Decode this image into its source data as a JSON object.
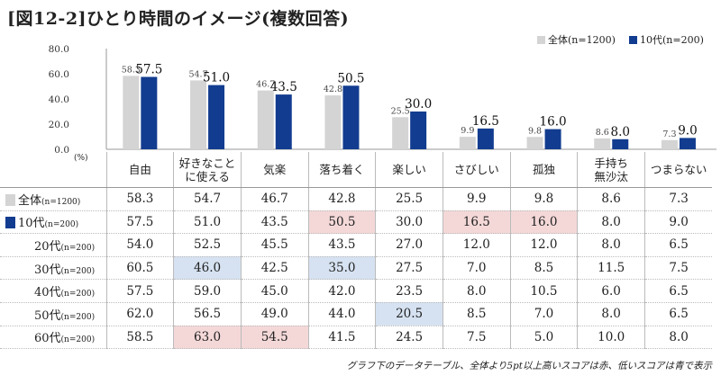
{
  "title": "[図12-2]ひとり時間のイメージ(複数回答)",
  "legend": [
    {
      "label": "全体",
      "sub": "(n=1200)",
      "color": "#d4d4d4"
    },
    {
      "label": "10代",
      "sub": "(n=200)",
      "color": "#123c8f"
    }
  ],
  "unit_label": "(%)",
  "note": "グラフ下のデータテーブル、全体より5pt以上高いスコアは赤、低いスコアは青で表示",
  "chart_data": {
    "type": "bar",
    "categories": [
      "自由",
      "好きなことに使える",
      "気楽",
      "落ち着く",
      "楽しい",
      "さびしい",
      "孤独",
      "手持ち無沙汰",
      "つまらない"
    ],
    "series": [
      {
        "name": "全体(n=1200)",
        "values": [
          58.3,
          54.7,
          46.7,
          42.8,
          25.5,
          9.9,
          9.8,
          8.6,
          7.3
        ]
      },
      {
        "name": "10代(n=200)",
        "values": [
          57.5,
          51.0,
          43.5,
          50.5,
          30.0,
          16.5,
          16.0,
          8.0,
          9.0
        ]
      }
    ],
    "ylim": [
      0,
      80
    ],
    "yticks": [
      "0.0",
      "20.0",
      "40.0",
      "60.0",
      "80.0"
    ],
    "grid": false,
    "legend_position": "top-right"
  },
  "table": {
    "headers": [
      [
        "自由"
      ],
      [
        "好きなこと",
        "に使える"
      ],
      [
        "気楽"
      ],
      [
        "落ち着く"
      ],
      [
        "楽しい"
      ],
      [
        "さびしい"
      ],
      [
        "孤独"
      ],
      [
        "手持ち",
        "無沙汰"
      ],
      [
        "つまらない"
      ]
    ],
    "rows": [
      {
        "label": "全体",
        "sub": "(n=1200)",
        "marker": "#d4d4d4",
        "indent": false,
        "values": [
          "58.3",
          "54.7",
          "46.7",
          "42.8",
          "25.5",
          "9.9",
          "9.8",
          "8.6",
          "7.3"
        ],
        "marks": [
          "",
          "",
          "",
          "",
          "",
          "",
          "",
          "",
          ""
        ]
      },
      {
        "label": "10代",
        "sub": "(n=200)",
        "marker": "#123c8f",
        "indent": false,
        "values": [
          "57.5",
          "51.0",
          "43.5",
          "50.5",
          "30.0",
          "16.5",
          "16.0",
          "8.0",
          "9.0"
        ],
        "marks": [
          "",
          "",
          "",
          "high",
          "",
          "high",
          "high",
          "",
          ""
        ]
      },
      {
        "label": "20代",
        "sub": "(n=200)",
        "marker": "",
        "indent": true,
        "values": [
          "54.0",
          "52.5",
          "45.5",
          "43.5",
          "27.0",
          "12.0",
          "12.0",
          "8.0",
          "6.5"
        ],
        "marks": [
          "",
          "",
          "",
          "",
          "",
          "",
          "",
          "",
          ""
        ]
      },
      {
        "label": "30代",
        "sub": "(n=200)",
        "marker": "",
        "indent": true,
        "values": [
          "60.5",
          "46.0",
          "42.5",
          "35.0",
          "27.5",
          "7.0",
          "8.5",
          "11.5",
          "7.5"
        ],
        "marks": [
          "",
          "low",
          "",
          "low",
          "",
          "",
          "",
          "",
          ""
        ]
      },
      {
        "label": "40代",
        "sub": "(n=200)",
        "marker": "",
        "indent": true,
        "values": [
          "57.5",
          "59.0",
          "45.0",
          "42.0",
          "23.5",
          "8.0",
          "10.5",
          "6.0",
          "6.5"
        ],
        "marks": [
          "",
          "",
          "",
          "",
          "",
          "",
          "",
          "",
          ""
        ]
      },
      {
        "label": "50代",
        "sub": "(n=200)",
        "marker": "",
        "indent": true,
        "values": [
          "62.0",
          "56.5",
          "49.0",
          "44.0",
          "20.5",
          "8.5",
          "7.0",
          "8.0",
          "6.5"
        ],
        "marks": [
          "",
          "",
          "",
          "",
          "low",
          "",
          "",
          "",
          ""
        ]
      },
      {
        "label": "60代",
        "sub": "(n=200)",
        "marker": "",
        "indent": true,
        "values": [
          "58.5",
          "63.0",
          "54.5",
          "41.5",
          "24.5",
          "7.5",
          "5.0",
          "10.0",
          "8.0"
        ],
        "marks": [
          "",
          "high",
          "high",
          "",
          "",
          "",
          "",
          "",
          ""
        ]
      }
    ]
  }
}
